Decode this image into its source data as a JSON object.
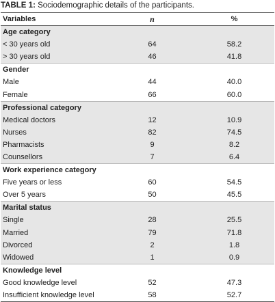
{
  "caption": {
    "label": "TABLE 1:",
    "text": " Sociodemographic details of the participants."
  },
  "columns": {
    "variables": "Variables",
    "n": "n",
    "percent": "%"
  },
  "groups": [
    {
      "category": "Age category",
      "rows": [
        {
          "label": "< 30 years old",
          "n": "64",
          "pct": "58.2"
        },
        {
          "label": "> 30 years old",
          "n": "46",
          "pct": "41.8"
        }
      ]
    },
    {
      "category": "Gender",
      "rows": [
        {
          "label": "Male",
          "n": "44",
          "pct": "40.0"
        },
        {
          "label": "Female",
          "n": "66",
          "pct": "60.0"
        }
      ]
    },
    {
      "category": "Professional category",
      "rows": [
        {
          "label": "Medical doctors",
          "n": "12",
          "pct": "10.9"
        },
        {
          "label": "Nurses",
          "n": "82",
          "pct": "74.5"
        },
        {
          "label": "Pharmacists",
          "n": "9",
          "pct": "8.2"
        },
        {
          "label": "Counsellors",
          "n": "7",
          "pct": "6.4"
        }
      ]
    },
    {
      "category": "Work experience category",
      "rows": [
        {
          "label": "Five years or less",
          "n": "60",
          "pct": "54.5"
        },
        {
          "label": "Over 5 years",
          "n": "50",
          "pct": "45.5"
        }
      ]
    },
    {
      "category": "Marital status",
      "rows": [
        {
          "label": "Single",
          "n": "28",
          "pct": "25.5"
        },
        {
          "label": "Married",
          "n": "79",
          "pct": "71.8"
        },
        {
          "label": "Divorced",
          "n": "2",
          "pct": "1.8"
        },
        {
          "label": "Widowed",
          "n": "1",
          "pct": "0.9"
        }
      ]
    },
    {
      "category": "Knowledge level",
      "rows": [
        {
          "label": "Good knowledge level",
          "n": "52",
          "pct": "47.3"
        },
        {
          "label": "Insufficient knowledge level",
          "n": "58",
          "pct": "52.7"
        }
      ]
    }
  ]
}
